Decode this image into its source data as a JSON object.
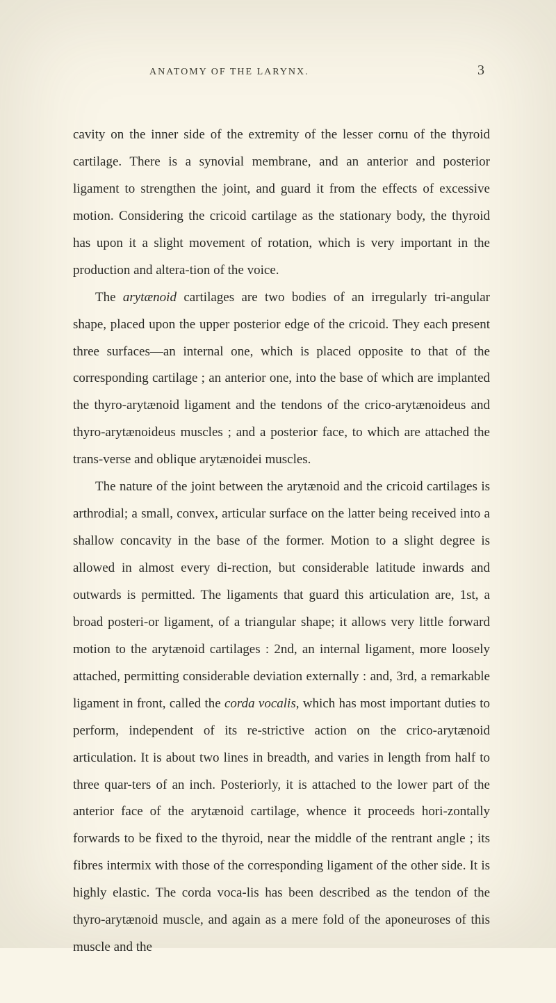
{
  "header": {
    "title": "ANATOMY OF THE LARYNX.",
    "page_number": "3"
  },
  "paragraphs": {
    "p1_a": "cavity on the inner side of the extremity of the lesser cornu of the thyroid cartilage. There is a synovial membrane, and an anterior and posterior ligament to strengthen the joint, and guard it from the effects of excessive motion. Considering the cricoid cartilage as the stationary body, the thyroid has upon it a slight movement of rotation, which is very important in the production and altera-tion of the voice.",
    "p2_a": "The ",
    "p2_b": "arytænoid",
    "p2_c": " cartilages are two bodies of an irregularly tri-angular shape, placed upon the upper posterior edge of the cricoid. They each present three surfaces—an internal one, which is placed opposite to that of the corresponding cartilage ; an anterior one, into the base of which are implanted the thyro-arytænoid ligament and the tendons of the crico-arytænoideus and thyro-arytænoideus muscles ; and a posterior face, to which are attached the trans-verse and oblique arytænoidei muscles.",
    "p3_a": "The nature of the joint between the arytænoid and the cricoid cartilages is arthrodial; a small, convex, articular surface on the latter being received into a shallow concavity in the base of the former. Motion to a slight degree is allowed in almost every di-rection, but considerable latitude inwards and outwards is permitted. The ligaments that guard this articulation are, 1st, a broad posteri-or ligament, of a triangular shape; it allows very little forward motion to the arytænoid cartilages : 2nd, an internal ligament, more loosely attached, permitting considerable deviation externally : and, 3rd, a remarkable ligament in front, called the ",
    "p3_b": "corda vocalis",
    "p3_c": ", which has most important duties to perform, independent of its re-strictive action on the crico-arytænoid articulation. It is about two lines in breadth, and varies in length from half to three quar-ters of an inch. Posteriorly, it is attached to the lower part of the anterior face of the arytænoid cartilage, whence it proceeds hori-zontally forwards to be fixed to the thyroid, near the middle of the rentrant angle ; its fibres intermix with those of the corresponding ligament of the other side. It is highly elastic. The corda voca-lis has been described as the tendon of the thyro-arytænoid muscle, and again as a mere fold of the aponeuroses of this muscle and the"
  },
  "styling": {
    "background_color": "#f9f5e8",
    "text_color": "#2a2a26",
    "header_color": "#3a3a32",
    "body_fontsize": 19,
    "header_fontsize": 14,
    "pagenum_fontsize": 20,
    "line_height": 2.05,
    "font_family": "Georgia, serif"
  }
}
